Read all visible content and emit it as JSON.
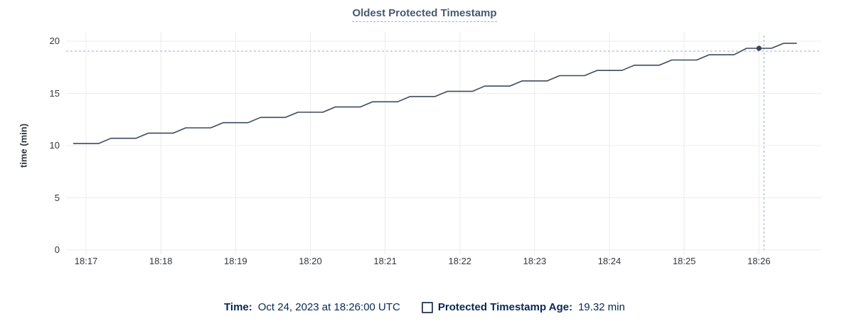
{
  "chart": {
    "title": "Oldest Protected Timestamp",
    "y_axis_label": "time (min)"
  },
  "legend": {
    "time_label": "Time:",
    "time_value": "Oct 24, 2023 at 18:26:00 UTC",
    "series_checkbox_icon": "unchecked-square-icon",
    "series_label": "Protected Timestamp Age:",
    "series_value": "19.32 min"
  },
  "colors": {
    "background": "#ffffff",
    "title_text": "#475872",
    "title_underline": "#a4b1c2",
    "axis_tick_text": "#33373d",
    "legend_text": "#072953",
    "grid_line": "#ececec",
    "series_line": "#3e4a5f",
    "highlight_dot": "#37445a",
    "crosshair_dashed": "#9bafc2"
  },
  "chart_data": {
    "type": "line",
    "title": "Oldest Protected Timestamp",
    "xlabel": "",
    "ylabel": "time (min)",
    "ylim": [
      0,
      20
    ],
    "y_ticks": [
      0,
      5,
      10,
      15,
      20
    ],
    "x_tick_labels": [
      "18:17",
      "18:18",
      "18:19",
      "18:20",
      "18:21",
      "18:22",
      "18:23",
      "18:24",
      "18:25",
      "18:26"
    ],
    "x_domain": [
      "18:16:44",
      "18:26:50"
    ],
    "grid": true,
    "legend_position": "bottom",
    "series": [
      {
        "name": "Protected Timestamp Age",
        "unit": "min",
        "points": [
          [
            "18:16:50",
            10.2
          ],
          [
            "18:17:00",
            10.2
          ],
          [
            "18:17:10",
            10.2
          ],
          [
            "18:17:20",
            10.7
          ],
          [
            "18:17:30",
            10.7
          ],
          [
            "18:17:40",
            10.7
          ],
          [
            "18:17:50",
            11.2
          ],
          [
            "18:18:00",
            11.2
          ],
          [
            "18:18:10",
            11.2
          ],
          [
            "18:18:20",
            11.7
          ],
          [
            "18:18:30",
            11.7
          ],
          [
            "18:18:40",
            11.7
          ],
          [
            "18:18:50",
            12.2
          ],
          [
            "18:19:00",
            12.2
          ],
          [
            "18:19:10",
            12.2
          ],
          [
            "18:19:20",
            12.7
          ],
          [
            "18:19:30",
            12.7
          ],
          [
            "18:19:40",
            12.7
          ],
          [
            "18:19:50",
            13.2
          ],
          [
            "18:20:00",
            13.2
          ],
          [
            "18:20:10",
            13.2
          ],
          [
            "18:20:20",
            13.7
          ],
          [
            "18:20:30",
            13.7
          ],
          [
            "18:20:40",
            13.7
          ],
          [
            "18:20:50",
            14.2
          ],
          [
            "18:21:00",
            14.2
          ],
          [
            "18:21:10",
            14.2
          ],
          [
            "18:21:20",
            14.7
          ],
          [
            "18:21:30",
            14.7
          ],
          [
            "18:21:40",
            14.7
          ],
          [
            "18:21:50",
            15.2
          ],
          [
            "18:22:00",
            15.2
          ],
          [
            "18:22:10",
            15.2
          ],
          [
            "18:22:20",
            15.7
          ],
          [
            "18:22:30",
            15.7
          ],
          [
            "18:22:40",
            15.7
          ],
          [
            "18:22:50",
            16.2
          ],
          [
            "18:23:00",
            16.2
          ],
          [
            "18:23:10",
            16.2
          ],
          [
            "18:23:20",
            16.7
          ],
          [
            "18:23:30",
            16.7
          ],
          [
            "18:23:40",
            16.7
          ],
          [
            "18:23:50",
            17.2
          ],
          [
            "18:24:00",
            17.2
          ],
          [
            "18:24:10",
            17.2
          ],
          [
            "18:24:20",
            17.7
          ],
          [
            "18:24:30",
            17.7
          ],
          [
            "18:24:40",
            17.7
          ],
          [
            "18:24:50",
            18.2
          ],
          [
            "18:25:00",
            18.2
          ],
          [
            "18:25:10",
            18.2
          ],
          [
            "18:25:20",
            18.7
          ],
          [
            "18:25:30",
            18.7
          ],
          [
            "18:25:40",
            18.7
          ],
          [
            "18:25:50",
            19.32
          ],
          [
            "18:26:00",
            19.32
          ],
          [
            "18:26:10",
            19.32
          ],
          [
            "18:26:20",
            19.8
          ],
          [
            "18:26:30",
            19.8
          ]
        ]
      }
    ],
    "highlight_point": {
      "time": "18:26:00",
      "value": 19.32
    },
    "crosshair": {
      "time": "18:26:04",
      "value": 19.05
    }
  }
}
